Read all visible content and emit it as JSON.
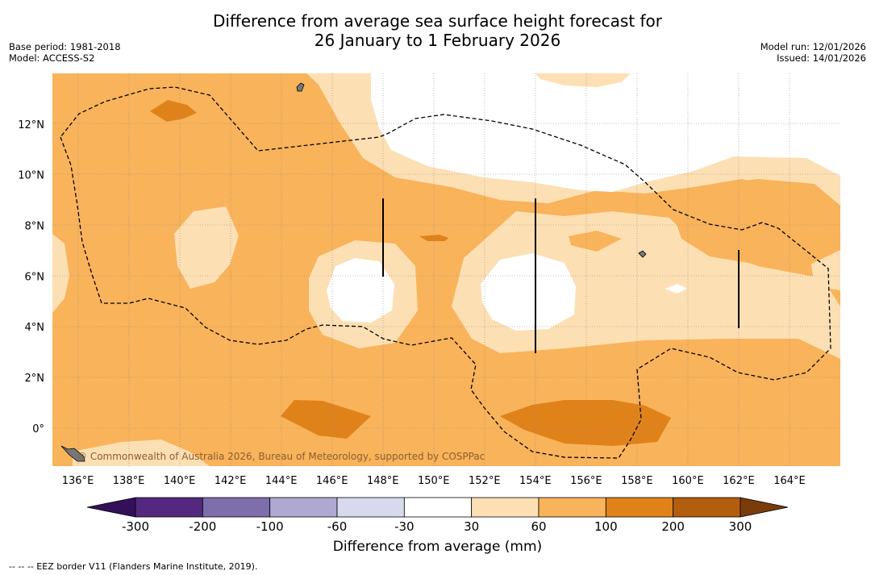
{
  "title": {
    "line1": "Difference from average sea surface height forecast for",
    "line2": "26 January to 1 February 2026"
  },
  "meta": {
    "base_period": "Base period: 1981-2018",
    "model": "Model: ACCESS-S2",
    "model_run": "Model run: 12/01/2026",
    "issued": "Issued: 14/01/2026"
  },
  "map": {
    "lon_labels": [
      "136°E",
      "138°E",
      "140°E",
      "142°E",
      "144°E",
      "146°E",
      "148°E",
      "150°E",
      "152°E",
      "154°E",
      "156°E",
      "158°E",
      "160°E",
      "162°E",
      "164°E"
    ],
    "lat_labels": [
      "12°N",
      "10°N",
      "8°N",
      "6°N",
      "4°N",
      "2°N",
      "0°"
    ],
    "lon_range": [
      135,
      166
    ],
    "lat_range": [
      -1.5,
      14
    ],
    "copyright": "© Commonwealth of Australia 2026, Bureau of Meteorology, supported by COSPPac",
    "colors": {
      "c30_60": "#fddfb4",
      "c60_100": "#f9b35a",
      "c100_200": "#e0821a",
      "white": "#ffffff"
    }
  },
  "colorbar": {
    "ticks": [
      "-300",
      "-200",
      "-100",
      "-60",
      "-30",
      "30",
      "60",
      "100",
      "200",
      "300"
    ],
    "colors": [
      "#34105b",
      "#54287f",
      "#7e6eab",
      "#afa9d2",
      "#d8d9ec",
      "#ffffff",
      "#fddfb4",
      "#f9b35a",
      "#e0821a",
      "#b35d0e",
      "#7a3d0a"
    ],
    "label": "Difference from average (mm)"
  },
  "footnote": "--  --  -- EEZ border V11 (Flanders Marine Institute, 2019)."
}
